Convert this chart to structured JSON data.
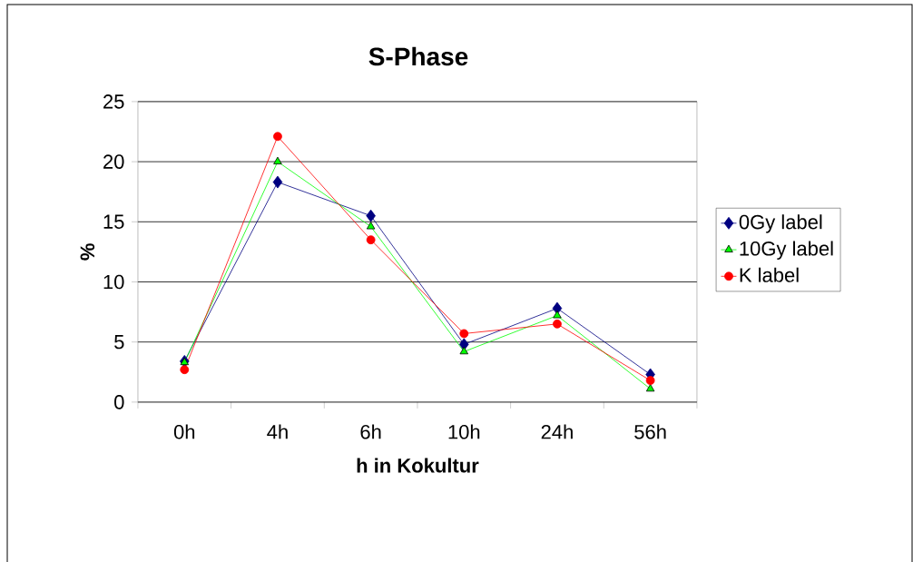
{
  "chart_data": {
    "type": "line",
    "title": "S-Phase",
    "xlabel": "h in Kokultur",
    "ylabel": "%",
    "categories": [
      "0h",
      "4h",
      "6h",
      "10h",
      "24h",
      "56h"
    ],
    "series": [
      {
        "name": "0Gy label",
        "color": "#000080",
        "marker": "diamond",
        "values": [
          3.4,
          18.3,
          15.5,
          4.8,
          7.8,
          2.3
        ]
      },
      {
        "name": "10Gy label",
        "color": "#00ff00",
        "marker": "triangle",
        "values": [
          3.3,
          20.0,
          14.6,
          4.2,
          7.2,
          1.1
        ]
      },
      {
        "name": "K label",
        "color": "#ff0000",
        "marker": "circle",
        "values": [
          2.7,
          22.1,
          13.5,
          5.7,
          6.5,
          1.8
        ]
      }
    ],
    "ylim": [
      0,
      25
    ],
    "yticks": [
      0,
      5,
      10,
      15,
      20,
      25
    ],
    "grid": "y",
    "legend": "right"
  }
}
